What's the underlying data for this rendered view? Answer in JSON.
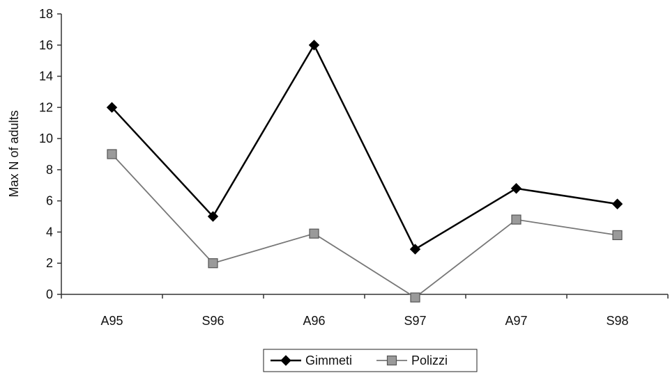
{
  "chart_data": {
    "type": "line",
    "categories": [
      "A95",
      "S96",
      "A96",
      "S97",
      "A97",
      "S98"
    ],
    "series": [
      {
        "name": "Gimmeti",
        "values": [
          12,
          5,
          16,
          2.9,
          6.8,
          5.8
        ],
        "color": "#000000",
        "marker": "diamond"
      },
      {
        "name": "Polizzi",
        "values": [
          9,
          2,
          3.9,
          -0.2,
          4.8,
          3.8
        ],
        "color": "#777777",
        "marker": "square"
      }
    ],
    "title": "",
    "xlabel": "",
    "ylabel": "Max N of adults",
    "ylim": [
      0,
      18
    ],
    "yticks": [
      "0",
      "2",
      "4",
      "6",
      "8",
      "10",
      "12",
      "14",
      "16",
      "18"
    ],
    "grid": false,
    "legend_position": "bottom"
  }
}
